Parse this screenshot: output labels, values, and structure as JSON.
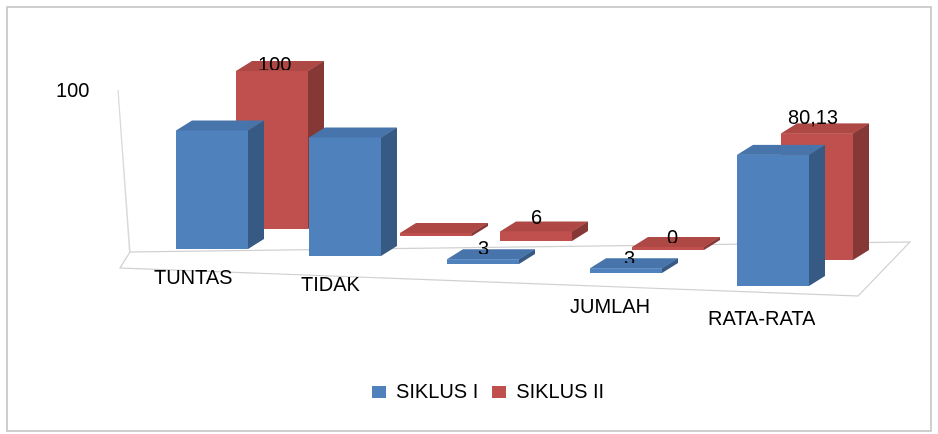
{
  "chart_data": {
    "type": "bar",
    "categories": [
      "TUNTAS",
      "TIDAK",
      "",
      "JUMLAH",
      "RATA-RATA"
    ],
    "series": [
      {
        "name": "SIKLUS I",
        "color": "#4F81BD",
        "values": [
          75,
          75,
          3,
          3,
          83
        ]
      },
      {
        "name": "SIKLUS II",
        "color": "#C0504D",
        "values": [
          100,
          0,
          6,
          0,
          80.13
        ]
      }
    ],
    "data_labels": {
      "SIKLUS I": [
        "",
        "",
        "3",
        "3",
        ""
      ],
      "SIKLUS II": [
        "100",
        "",
        "6",
        "0",
        "80,13"
      ]
    },
    "ytick_labels": [
      "100"
    ],
    "three_d": true
  },
  "legend": {
    "items": [
      "SIKLUS I",
      "SIKLUS II"
    ]
  }
}
